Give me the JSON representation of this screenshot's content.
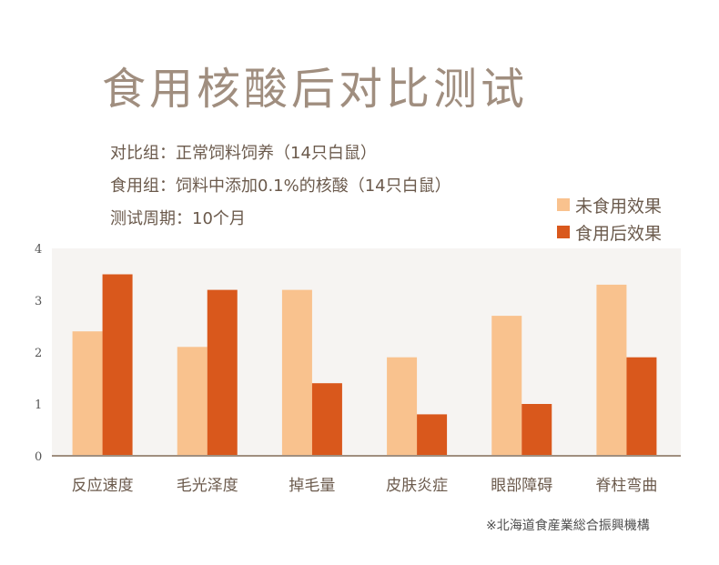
{
  "header": {
    "title": "食用核酸后对比测试",
    "info": [
      "对比组：正常饲料饲养（14只白鼠）",
      "食用组：饲料中添加0.1%的核酸（14只白鼠）",
      "测试周期：10个月"
    ]
  },
  "source": "※北海道食産業総合振興機構",
  "chart_data": {
    "type": "bar",
    "title": "食用核酸后对比测试",
    "categories": [
      "反应速度",
      "毛光泽度",
      "掉毛量",
      "皮肤炎症",
      "眼部障碍",
      "脊柱弯曲"
    ],
    "series": [
      {
        "name": "未食用效果",
        "color": "#f9c28e",
        "values": [
          2.4,
          2.1,
          3.2,
          1.9,
          2.7,
          3.3
        ]
      },
      {
        "name": "食用后效果",
        "color": "#d9581c",
        "values": [
          3.5,
          3.2,
          1.4,
          0.8,
          1.0,
          1.9
        ]
      }
    ],
    "ylim": [
      0,
      4
    ],
    "yticks": [
      0,
      1,
      2,
      3,
      4
    ],
    "grid": false,
    "legend": "top-right",
    "background": "#f6f4f2"
  }
}
